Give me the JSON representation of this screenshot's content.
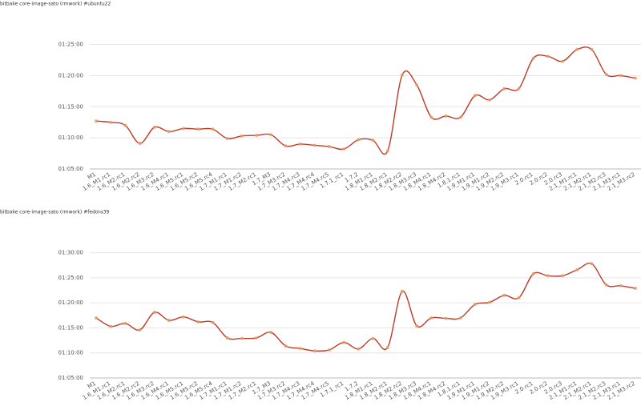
{
  "chart_data": [
    {
      "type": "line",
      "title": "bitbake core-image-sato (rmwork) #ubuntu22",
      "categories": [
        "M1",
        "1.6_M1.rc1",
        "1.6_M2.rc1",
        "1.6_M2.rc2",
        "1.6_M3.rc2",
        "1.6_M4.rc1",
        "1.6_M5.rc1",
        "1.6_M5.rc2",
        "1.6_M5.rc4",
        "1.7_M1.rc1",
        "1.7_M1.rc2",
        "1.7_M2.rc1",
        "1.7_M3",
        "1.7_M3.rc2",
        "1.7_M4.rc3",
        "1.7_M4.rc4",
        "1.7_M4.rc5",
        "1.7.1_rc1",
        "1.7.2",
        "1.8_M1.rc1",
        "1.8_M2.rc1",
        "1.8_M2.rc2",
        "1.8_M3.rc3",
        "1.8_M4.rc1",
        "1.8_M4.rc2",
        "1.8.1.rc1",
        "1.9_M1.rc1",
        "1.9_M1.rc2",
        "1.9_M2.rc2",
        "1.9_M3.rc1",
        "2.0.rc1",
        "2.0.rc2",
        "2.0.rc3",
        "2.1_M1.rc1",
        "2.1_M2.rc1",
        "2.1_M2.rc3",
        "2.1_M3.rc1",
        "2.1_M3.rc2"
      ],
      "values": [
        4362,
        4350,
        4320,
        4146,
        4302,
        4260,
        4290,
        4284,
        4284,
        4194,
        4218,
        4224,
        4230,
        4122,
        4140,
        4128,
        4116,
        4092,
        4182,
        4176,
        4074,
        4806,
        4710,
        4398,
        4410,
        4398,
        4608,
        4566,
        4674,
        4674,
        4968,
        4986,
        4938,
        5052,
        5052,
        4812,
        4800,
        4776
      ],
      "color": "#c0392b",
      "ylim": [
        3900,
        5220
      ],
      "yticks": [
        {
          "value": 3900,
          "label": "01:05:00"
        },
        {
          "value": 4200,
          "label": "01:10:00"
        },
        {
          "value": 4500,
          "label": "01:15:00"
        },
        {
          "value": 4800,
          "label": "01:20:00"
        },
        {
          "value": 5100,
          "label": "01:25:00"
        }
      ],
      "grid": true
    },
    {
      "type": "line",
      "title": "bitbake core-image-sato (rmwork) #fedora39",
      "categories": [
        "M1",
        "1.6_M1.rc1",
        "1.6_M2.rc1",
        "1.6_M2.rc2",
        "1.6_M3.rc2",
        "1.6_M4.rc1",
        "1.6_M5.rc1",
        "1.6_M5.rc2",
        "1.6_M5.rc4",
        "1.7_M1.rc1",
        "1.7_M1.rc2",
        "1.7_M2.rc1",
        "1.7_M3",
        "1.7_M3.rc2",
        "1.7_M4.rc3",
        "1.7_M4.rc4",
        "1.7_M4.rc5",
        "1.7.1_rc1",
        "1.7.2",
        "1.8_M1.rc1",
        "1.8_M2.rc1",
        "1.8_M2.rc2",
        "1.8_M3.rc3",
        "1.8_M4.rc1",
        "1.8_M4.rc2",
        "1.8.1.rc1",
        "1.9_M1.rc1",
        "1.9_M1.rc2",
        "1.9_M2.rc2",
        "1.9_M3.rc1",
        "2.0.rc1",
        "2.0.rc2",
        "2.0.rc3",
        "2.1_M1.rc1",
        "2.1_M2.rc1",
        "2.1_M2.rc3",
        "2.1_M3.rc1",
        "2.1_M3.rc2"
      ],
      "values": [
        4620,
        4518,
        4554,
        4476,
        4686,
        4590,
        4632,
        4572,
        4566,
        4380,
        4374,
        4380,
        4446,
        4284,
        4254,
        4224,
        4236,
        4326,
        4248,
        4374,
        4266,
        4938,
        4524,
        4620,
        4614,
        4620,
        4782,
        4806,
        4890,
        4860,
        5148,
        5124,
        5124,
        5196,
        5268,
        5016,
        5004,
        4974
      ],
      "color": "#c0392b",
      "ylim": [
        3900,
        5550
      ],
      "yticks": [
        {
          "value": 3900,
          "label": "01:05:00"
        },
        {
          "value": 4200,
          "label": "01:10:00"
        },
        {
          "value": 4500,
          "label": "01:15:00"
        },
        {
          "value": 4800,
          "label": "01:20:00"
        },
        {
          "value": 5100,
          "label": "01:25:00"
        },
        {
          "value": 5400,
          "label": "01:30:00"
        }
      ],
      "grid": true
    }
  ]
}
